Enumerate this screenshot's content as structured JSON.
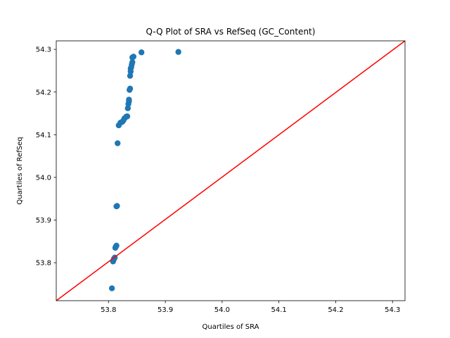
{
  "chart_data": {
    "type": "scatter",
    "title": "Q-Q Plot of SRA vs RefSeq (GC_Content)",
    "xlabel": "Quartiles of SRA",
    "ylabel": "Quartiles of RefSeq",
    "xlim": [
      53.708,
      54.322
    ],
    "ylim": [
      53.711,
      54.32
    ],
    "xticks": [
      53.8,
      53.9,
      54.0,
      54.1,
      54.2,
      54.3
    ],
    "xtick_labels": [
      "53.8",
      "53.9",
      "54.0",
      "54.1",
      "54.2",
      "54.3"
    ],
    "yticks": [
      53.8,
      53.9,
      54.0,
      54.1,
      54.2,
      54.3
    ],
    "ytick_labels": [
      "53.8",
      "53.9",
      "54.0",
      "54.1",
      "54.2",
      "54.3"
    ],
    "grid": false,
    "legend": "none",
    "colors": {
      "points": "#1f77b4",
      "reference_line": "#ff0000"
    },
    "reference_line": {
      "from": [
        53.708,
        53.711
      ],
      "to": [
        54.322,
        54.32
      ]
    },
    "points": [
      {
        "x": 53.806,
        "y": 53.74
      },
      {
        "x": 53.808,
        "y": 53.803
      },
      {
        "x": 53.809,
        "y": 53.807
      },
      {
        "x": 53.81,
        "y": 53.81
      },
      {
        "x": 53.811,
        "y": 53.812
      },
      {
        "x": 53.812,
        "y": 53.835
      },
      {
        "x": 53.813,
        "y": 53.838
      },
      {
        "x": 53.814,
        "y": 53.84
      },
      {
        "x": 53.814,
        "y": 53.932
      },
      {
        "x": 53.815,
        "y": 53.933
      },
      {
        "x": 53.816,
        "y": 54.08
      },
      {
        "x": 53.818,
        "y": 54.122
      },
      {
        "x": 53.821,
        "y": 54.128
      },
      {
        "x": 53.824,
        "y": 54.13
      },
      {
        "x": 53.826,
        "y": 54.133
      },
      {
        "x": 53.828,
        "y": 54.138
      },
      {
        "x": 53.831,
        "y": 54.142
      },
      {
        "x": 53.833,
        "y": 54.143
      },
      {
        "x": 53.834,
        "y": 54.162
      },
      {
        "x": 53.835,
        "y": 54.172
      },
      {
        "x": 53.836,
        "y": 54.178
      },
      {
        "x": 53.836,
        "y": 54.182
      },
      {
        "x": 53.837,
        "y": 54.205
      },
      {
        "x": 53.838,
        "y": 54.208
      },
      {
        "x": 53.838,
        "y": 54.238
      },
      {
        "x": 53.839,
        "y": 54.248
      },
      {
        "x": 53.839,
        "y": 54.255
      },
      {
        "x": 53.84,
        "y": 54.258
      },
      {
        "x": 53.841,
        "y": 54.265
      },
      {
        "x": 53.842,
        "y": 54.27
      },
      {
        "x": 53.842,
        "y": 54.281
      },
      {
        "x": 53.844,
        "y": 54.283
      },
      {
        "x": 53.858,
        "y": 54.293
      },
      {
        "x": 53.923,
        "y": 54.294
      }
    ]
  }
}
